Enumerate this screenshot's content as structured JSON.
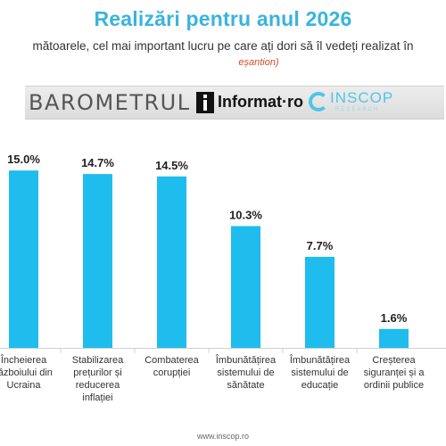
{
  "header": {
    "title": "Realizări pentru anul 2026",
    "subtitle": "mătoarele, cel mai important lucru pe care ați dori să îl vedeți realizat în",
    "subtitle_note": "eșantion)"
  },
  "logos": {
    "barometrul": "BAROMETRUL",
    "informat": "Informat·ro",
    "inscop": "INSCOP",
    "inscop_sub": "RESEARCH"
  },
  "footer": {
    "url": "www.inscop.ro"
  },
  "colors": {
    "bar": "#1fbcee",
    "title": "#3ab3df",
    "note": "#d64b2a"
  },
  "chart_data": {
    "type": "bar",
    "title": "Realizări pentru anul 2026",
    "categories": [
      [
        "Încheierea",
        "războiului din",
        "Ucraina"
      ],
      [
        "Stabilizarea",
        "prețurilor și",
        "reducerea",
        "inflației"
      ],
      [
        "Combaterea",
        "corupției"
      ],
      [
        "Îmbunătățirea",
        "sistemului de",
        "sănătate"
      ],
      [
        "Îmbunătățirea",
        "sistemului de",
        "educație"
      ],
      [
        "Creșterea",
        "siguranței și a",
        "ordinii publice"
      ]
    ],
    "values": [
      15.0,
      14.7,
      14.5,
      10.3,
      7.7,
      1.6
    ],
    "value_labels": [
      "15.0%",
      "14.7%",
      "14.5%",
      "10.3%",
      "7.7%",
      "1.6%"
    ],
    "ylim": [
      0,
      16
    ],
    "grid": false,
    "legend": "none"
  }
}
